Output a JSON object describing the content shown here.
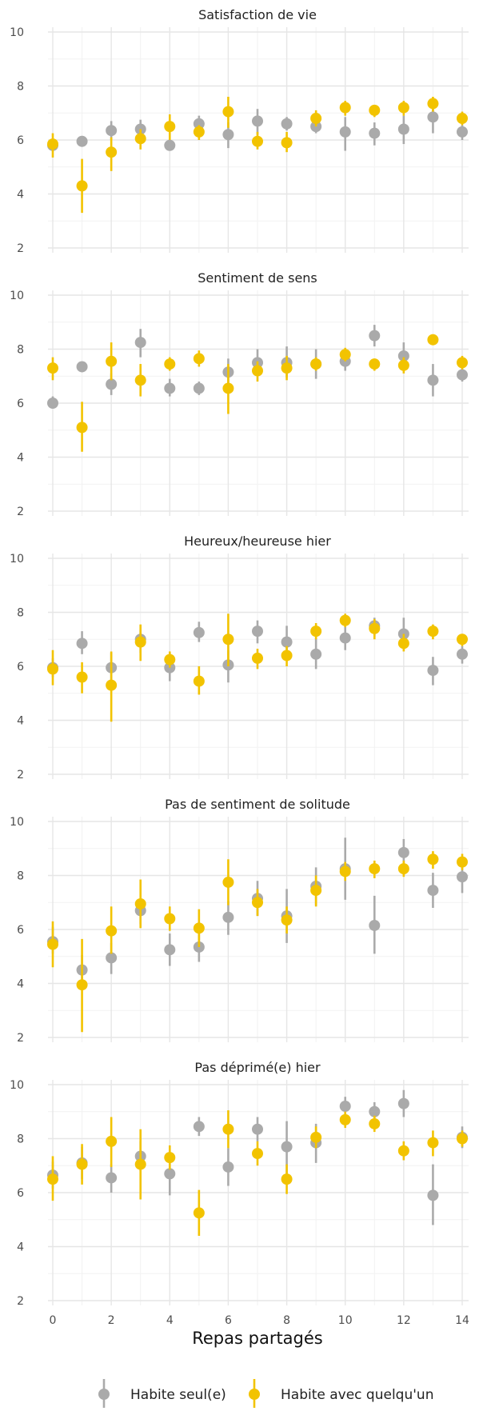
{
  "colors": {
    "seul": "#aaaaaa",
    "avec": "#f2c300"
  },
  "chart_data": {
    "type": "scatter",
    "subtype": "point-range faceted",
    "xlabel": "Repas partagés",
    "x_ticks": [
      0,
      2,
      4,
      6,
      8,
      10,
      12,
      14
    ],
    "y_ticks": [
      2,
      4,
      6,
      8,
      10
    ],
    "ylim": [
      2,
      10
    ],
    "xlim": [
      0,
      14
    ],
    "grid": true,
    "legend_position": "bottom",
    "legend": [
      {
        "key": "seul",
        "label": "Habite seul(e)"
      },
      {
        "key": "avec",
        "label": "Habite avec quelqu'un"
      }
    ],
    "panels": [
      {
        "title": "Satisfaction de vie",
        "series": [
          {
            "key": "seul",
            "points": [
              [
                0,
                5.8,
                5.6,
                6.0
              ],
              [
                1,
                5.95,
                5.75,
                6.15
              ],
              [
                2,
                6.35,
                6.0,
                6.7
              ],
              [
                3,
                6.4,
                6.1,
                6.75
              ],
              [
                4,
                5.8,
                5.6,
                6.0
              ],
              [
                5,
                6.6,
                6.3,
                6.9
              ],
              [
                6,
                6.2,
                5.7,
                6.65
              ],
              [
                7,
                6.7,
                6.2,
                7.15
              ],
              [
                8,
                6.6,
                6.35,
                6.85
              ],
              [
                9,
                6.5,
                6.25,
                6.7
              ],
              [
                10,
                6.3,
                5.6,
                6.85
              ],
              [
                11,
                6.25,
                5.8,
                6.65
              ],
              [
                12,
                6.4,
                5.85,
                6.9
              ],
              [
                13,
                6.85,
                6.25,
                7.35
              ],
              [
                14,
                6.3,
                6.0,
                6.55
              ]
            ]
          },
          {
            "key": "avec",
            "points": [
              [
                0,
                5.85,
                5.35,
                6.25
              ],
              [
                1,
                4.3,
                3.3,
                5.3
              ],
              [
                2,
                5.55,
                4.85,
                6.1
              ],
              [
                3,
                6.05,
                5.65,
                6.4
              ],
              [
                4,
                6.5,
                6.0,
                6.95
              ],
              [
                5,
                6.3,
                6.0,
                6.55
              ],
              [
                6,
                7.05,
                6.45,
                7.6
              ],
              [
                7,
                5.95,
                5.65,
                6.3
              ],
              [
                8,
                5.9,
                5.55,
                6.3
              ],
              [
                9,
                6.8,
                6.5,
                7.1
              ],
              [
                10,
                7.2,
                6.9,
                7.45
              ],
              [
                11,
                7.1,
                6.85,
                7.3
              ],
              [
                12,
                7.2,
                6.9,
                7.45
              ],
              [
                13,
                7.35,
                7.05,
                7.6
              ],
              [
                14,
                6.8,
                6.55,
                7.05
              ]
            ]
          }
        ]
      },
      {
        "title": "Sentiment de sens",
        "series": [
          {
            "key": "seul",
            "points": [
              [
                0,
                6.0,
                5.8,
                6.25
              ],
              [
                1,
                7.35,
                7.15,
                7.5
              ],
              [
                2,
                6.7,
                6.3,
                7.1
              ],
              [
                3,
                8.25,
                7.7,
                8.75
              ],
              [
                4,
                6.55,
                6.25,
                6.9
              ],
              [
                5,
                6.55,
                6.3,
                6.8
              ],
              [
                6,
                7.15,
                6.65,
                7.65
              ],
              [
                7,
                7.5,
                7.0,
                8.0
              ],
              [
                8,
                7.5,
                6.95,
                8.1
              ],
              [
                9,
                7.45,
                6.9,
                8.0
              ],
              [
                10,
                7.55,
                7.2,
                7.85
              ],
              [
                11,
                8.5,
                8.1,
                8.9
              ],
              [
                12,
                7.75,
                7.3,
                8.25
              ],
              [
                13,
                6.85,
                6.25,
                7.45
              ],
              [
                14,
                7.05,
                6.8,
                7.3
              ]
            ]
          },
          {
            "key": "avec",
            "points": [
              [
                0,
                7.3,
                6.85,
                7.7
              ],
              [
                1,
                5.1,
                4.2,
                6.05
              ],
              [
                2,
                7.55,
                6.85,
                8.25
              ],
              [
                3,
                6.85,
                6.25,
                7.45
              ],
              [
                4,
                7.45,
                7.2,
                7.7
              ],
              [
                5,
                7.65,
                7.35,
                7.95
              ],
              [
                6,
                6.55,
                5.6,
                7.45
              ],
              [
                7,
                7.2,
                6.8,
                7.55
              ],
              [
                8,
                7.3,
                6.85,
                7.75
              ],
              [
                9,
                7.45,
                7.2,
                7.7
              ],
              [
                10,
                7.8,
                7.55,
                8.05
              ],
              [
                11,
                7.45,
                7.2,
                7.65
              ],
              [
                12,
                7.4,
                7.1,
                7.7
              ],
              [
                13,
                8.35,
                8.15,
                8.55
              ],
              [
                14,
                7.5,
                7.25,
                7.75
              ]
            ]
          }
        ]
      },
      {
        "title": "Heureux/heureuse hier",
        "series": [
          {
            "key": "seul",
            "points": [
              [
                0,
                5.95,
                5.6,
                6.3
              ],
              [
                1,
                6.85,
                6.45,
                7.3
              ],
              [
                2,
                5.95,
                5.4,
                6.5
              ],
              [
                3,
                7.0,
                6.5,
                7.35
              ],
              [
                4,
                5.95,
                5.45,
                6.5
              ],
              [
                5,
                7.25,
                6.9,
                7.65
              ],
              [
                6,
                6.05,
                5.4,
                6.6
              ],
              [
                7,
                7.3,
                6.85,
                7.7
              ],
              [
                8,
                6.9,
                6.3,
                7.5
              ],
              [
                9,
                6.45,
                5.9,
                7.05
              ],
              [
                10,
                7.05,
                6.6,
                7.5
              ],
              [
                11,
                7.5,
                7.1,
                7.8
              ],
              [
                12,
                7.2,
                6.6,
                7.8
              ],
              [
                13,
                5.85,
                5.3,
                6.35
              ],
              [
                14,
                6.45,
                6.1,
                6.75
              ]
            ]
          },
          {
            "key": "avec",
            "points": [
              [
                0,
                5.9,
                5.3,
                6.6
              ],
              [
                1,
                5.6,
                5.0,
                6.15
              ],
              [
                2,
                5.3,
                3.95,
                6.55
              ],
              [
                3,
                6.9,
                6.2,
                7.55
              ],
              [
                4,
                6.25,
                5.95,
                6.55
              ],
              [
                5,
                5.45,
                4.95,
                6.0
              ],
              [
                6,
                7.0,
                6.0,
                7.95
              ],
              [
                7,
                6.3,
                5.9,
                6.65
              ],
              [
                8,
                6.4,
                6.0,
                6.75
              ],
              [
                9,
                7.3,
                7.0,
                7.6
              ],
              [
                10,
                7.7,
                7.45,
                7.95
              ],
              [
                11,
                7.4,
                7.0,
                7.75
              ],
              [
                12,
                6.85,
                6.55,
                7.2
              ],
              [
                13,
                7.3,
                7.0,
                7.55
              ],
              [
                14,
                7.0,
                6.75,
                7.2
              ]
            ]
          }
        ]
      },
      {
        "title": "Pas de sentiment de solitude",
        "series": [
          {
            "key": "seul",
            "points": [
              [
                0,
                5.55,
                5.1,
                6.1
              ],
              [
                1,
                4.5,
                3.95,
                5.05
              ],
              [
                2,
                4.95,
                4.35,
                5.5
              ],
              [
                3,
                6.7,
                6.2,
                7.15
              ],
              [
                4,
                5.25,
                4.65,
                5.85
              ],
              [
                5,
                5.35,
                4.8,
                5.95
              ],
              [
                6,
                6.45,
                5.8,
                7.05
              ],
              [
                7,
                7.15,
                6.5,
                7.8
              ],
              [
                8,
                6.5,
                5.5,
                7.5
              ],
              [
                9,
                7.6,
                6.9,
                8.3
              ],
              [
                10,
                8.25,
                7.1,
                9.4
              ],
              [
                11,
                6.15,
                5.1,
                7.25
              ],
              [
                12,
                8.85,
                8.3,
                9.35
              ],
              [
                13,
                7.45,
                6.8,
                8.1
              ],
              [
                14,
                7.95,
                7.35,
                8.55
              ]
            ]
          },
          {
            "key": "avec",
            "points": [
              [
                0,
                5.45,
                4.6,
                6.3
              ],
              [
                1,
                3.95,
                2.2,
                5.65
              ],
              [
                2,
                5.95,
                5.1,
                6.85
              ],
              [
                3,
                6.95,
                6.05,
                7.85
              ],
              [
                4,
                6.4,
                5.95,
                6.85
              ],
              [
                5,
                6.05,
                5.35,
                6.75
              ],
              [
                6,
                7.75,
                6.9,
                8.6
              ],
              [
                7,
                7.0,
                6.5,
                7.5
              ],
              [
                8,
                6.35,
                5.85,
                6.85
              ],
              [
                9,
                7.45,
                6.85,
                8.0
              ],
              [
                10,
                8.15,
                7.8,
                8.5
              ],
              [
                11,
                8.25,
                7.9,
                8.55
              ],
              [
                12,
                8.25,
                7.95,
                8.55
              ],
              [
                13,
                8.6,
                8.25,
                8.9
              ],
              [
                14,
                8.5,
                8.2,
                8.8
              ]
            ]
          }
        ]
      },
      {
        "title": "Pas déprimé(e) hier",
        "series": [
          {
            "key": "seul",
            "points": [
              [
                0,
                6.65,
                6.15,
                7.15
              ],
              [
                1,
                7.1,
                6.5,
                7.7
              ],
              [
                2,
                6.55,
                6.0,
                7.05
              ],
              [
                3,
                7.35,
                6.8,
                7.9
              ],
              [
                4,
                6.7,
                5.9,
                7.5
              ],
              [
                5,
                8.45,
                8.1,
                8.8
              ],
              [
                6,
                6.95,
                6.25,
                7.65
              ],
              [
                7,
                8.35,
                7.9,
                8.8
              ],
              [
                8,
                7.7,
                6.7,
                8.65
              ],
              [
                9,
                7.85,
                7.1,
                8.55
              ],
              [
                10,
                9.2,
                8.8,
                9.55
              ],
              [
                11,
                9.0,
                8.6,
                9.35
              ],
              [
                12,
                9.3,
                8.8,
                9.8
              ],
              [
                13,
                5.9,
                4.8,
                7.05
              ],
              [
                14,
                8.05,
                7.65,
                8.45
              ]
            ]
          },
          {
            "key": "avec",
            "points": [
              [
                0,
                6.5,
                5.7,
                7.35
              ],
              [
                1,
                7.05,
                6.3,
                7.8
              ],
              [
                2,
                7.9,
                6.95,
                8.8
              ],
              [
                3,
                7.05,
                5.75,
                8.35
              ],
              [
                4,
                7.3,
                6.85,
                7.75
              ],
              [
                5,
                5.25,
                4.4,
                6.1
              ],
              [
                6,
                8.35,
                7.65,
                9.05
              ],
              [
                7,
                7.45,
                7.0,
                7.9
              ],
              [
                8,
                6.5,
                5.95,
                7.05
              ],
              [
                9,
                8.05,
                7.65,
                8.45
              ],
              [
                10,
                8.7,
                8.4,
                9.0
              ],
              [
                11,
                8.55,
                8.25,
                8.85
              ],
              [
                12,
                7.55,
                7.2,
                7.9
              ],
              [
                13,
                7.85,
                7.35,
                8.3
              ],
              [
                14,
                8.0,
                7.7,
                8.3
              ]
            ]
          }
        ]
      }
    ]
  }
}
